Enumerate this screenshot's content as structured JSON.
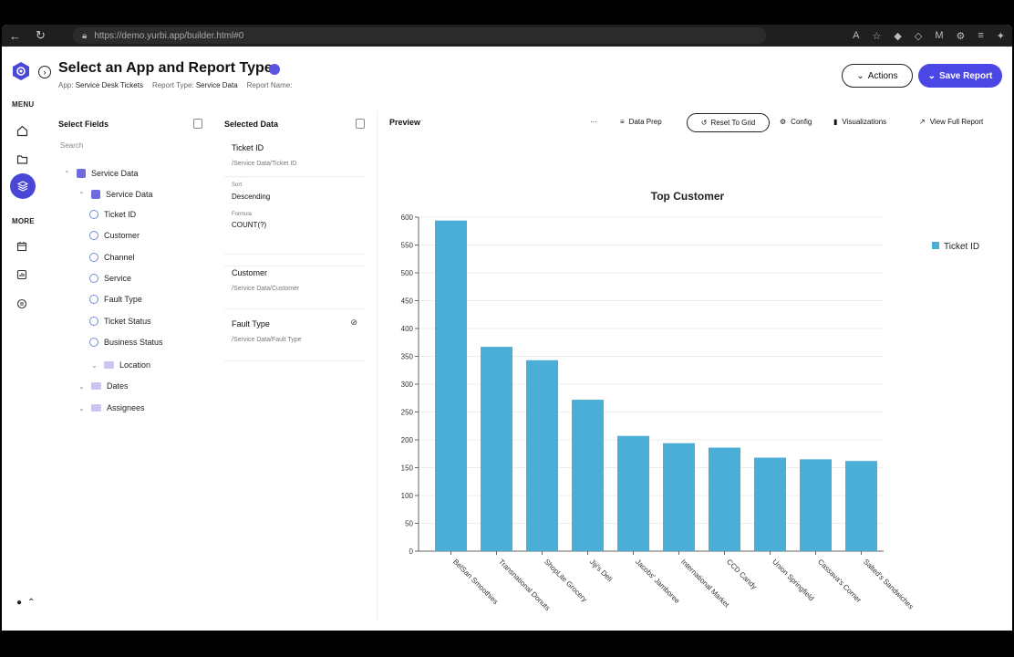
{
  "browser": {
    "url": "https://demo.yurbi.app/builder.html#0"
  },
  "header": {
    "title": "Select an App and Report Type",
    "app_label": "App:",
    "app_value": "Service Desk Tickets",
    "report_type_label": "Report Type:",
    "report_type_value": "Service Data",
    "report_name_label": "Report Name:",
    "actions_label": "Actions",
    "save_label": "Save Report"
  },
  "rail": {
    "menu_label": "MENU",
    "more_label": "MORE"
  },
  "fields_panel": {
    "title": "Select Fields",
    "search_placeholder": "Search",
    "root": "Service Data",
    "group": "Service Data",
    "fields": [
      "Ticket ID",
      "Customer",
      "Channel",
      "Service",
      "Fault Type",
      "Ticket Status",
      "Business Status"
    ],
    "folders": [
      "Location",
      "Dates",
      "Assignees"
    ]
  },
  "selected_panel": {
    "title": "Selected Data",
    "cards": [
      {
        "name": "Ticket ID",
        "path": "/Service Data/Ticket ID",
        "sort_label": "Sort",
        "sort_value": "Descending",
        "formula_label": "Formula",
        "formula_value": "COUNT(?)"
      },
      {
        "name": "Customer",
        "path": "/Service Data/Customer"
      },
      {
        "name": "Fault Type",
        "path": "/Service Data/Fault Type"
      }
    ]
  },
  "preview": {
    "title": "Preview",
    "more": "···",
    "data_prep": "Data Prep",
    "reset_grid": "Reset To Grid",
    "config": "Config",
    "visualizations": "Visualizations",
    "view_full": "View Full Report"
  },
  "chart_data": {
    "type": "bar",
    "title": "Top Customer",
    "categories": [
      "BelSan Smoothies",
      "Transnational Donuts",
      "ShopLite Grocery",
      "Jiji's Deli",
      "Jacobs' Jamboree",
      "International Market",
      "CCD Candy",
      "Union Springfield",
      "Cassava's Corner",
      "Salted's Sandwiches"
    ],
    "series": [
      {
        "name": "Ticket ID",
        "values": [
          594,
          367,
          343,
          272,
          207,
          194,
          186,
          168,
          165,
          162
        ],
        "color": "#4baed7"
      }
    ],
    "ylim": [
      0,
      600
    ],
    "yticks": [
      0,
      50,
      100,
      150,
      200,
      250,
      300,
      350,
      400,
      450,
      500,
      550,
      600
    ],
    "legend_position": "top-right",
    "grid": true
  }
}
